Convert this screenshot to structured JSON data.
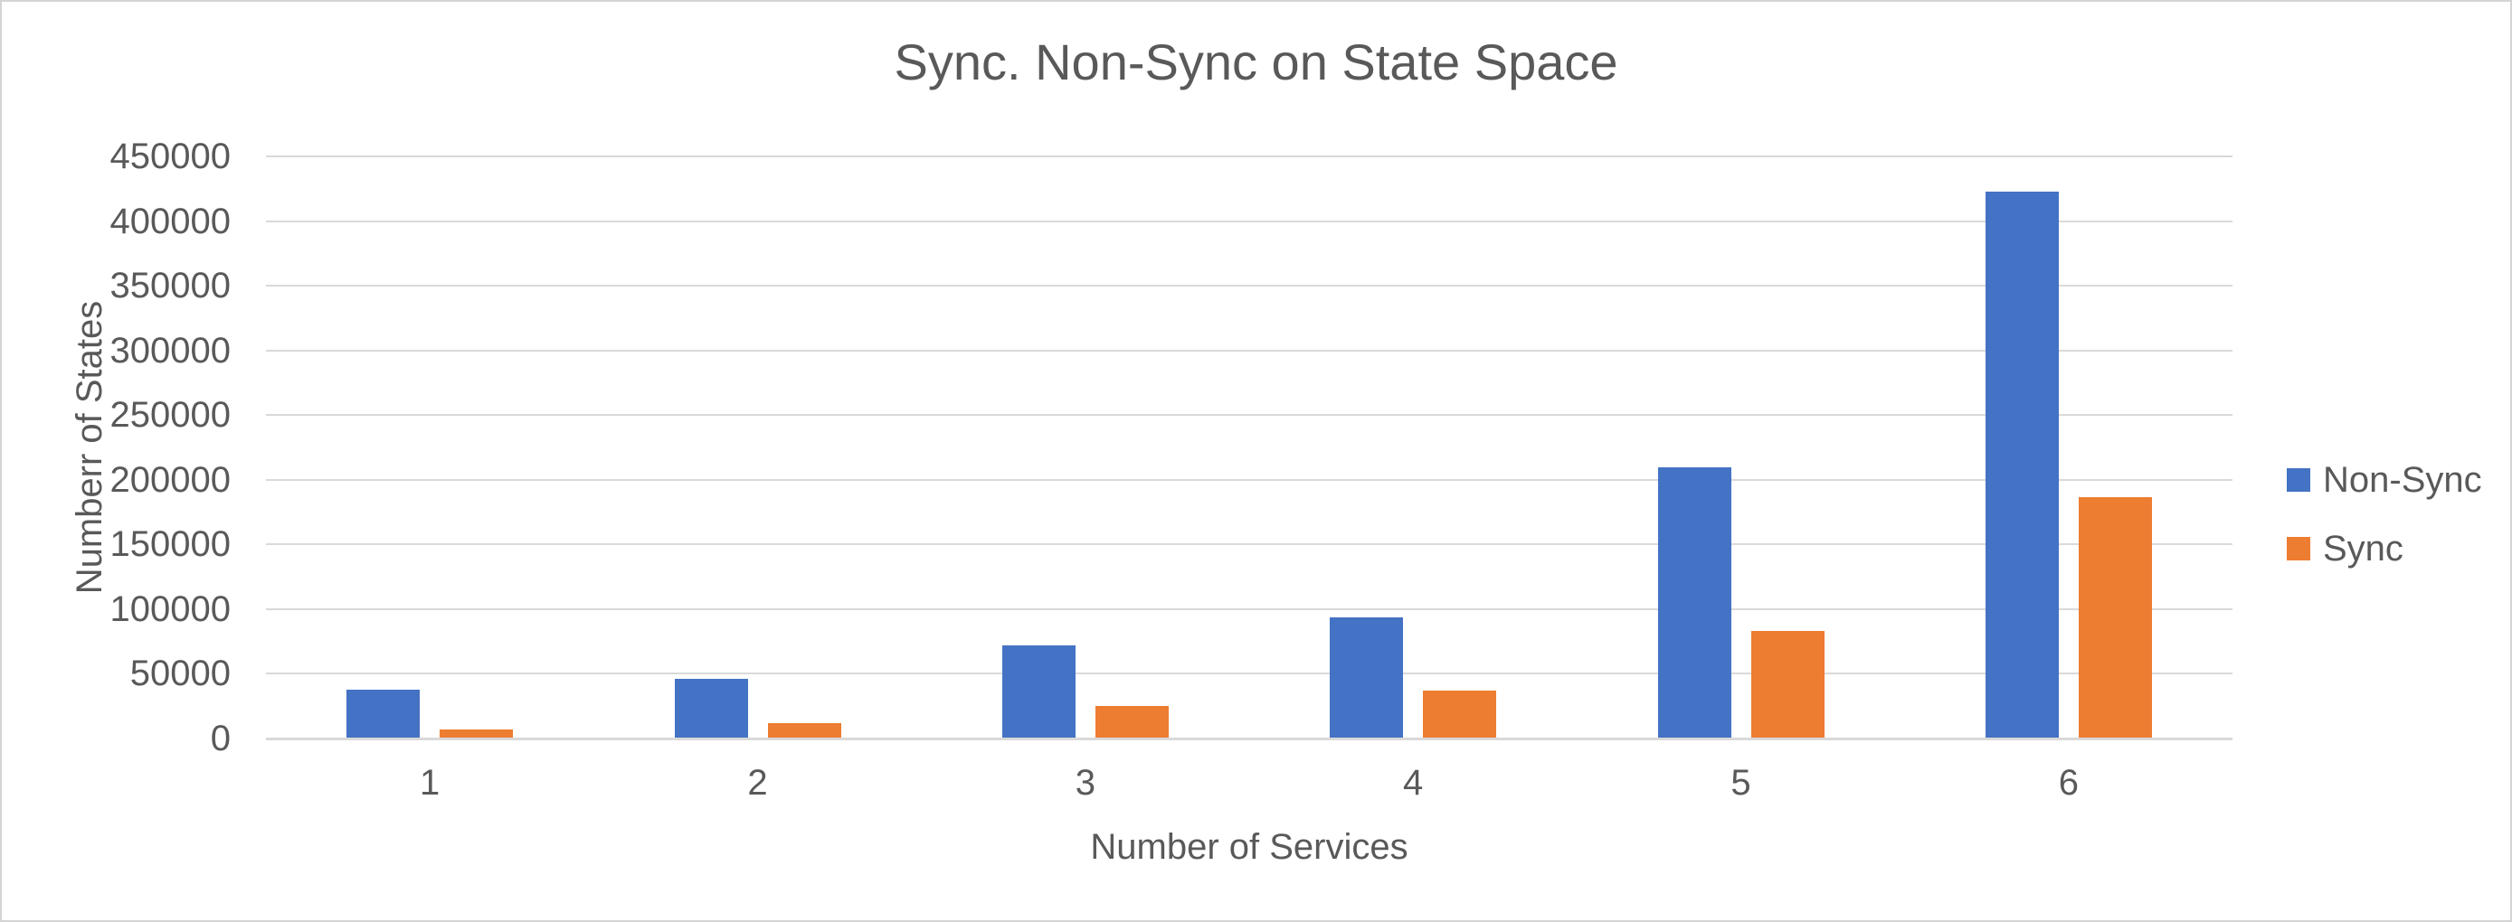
{
  "chart_data": {
    "type": "bar",
    "title": "Sync. Non-Sync on State Space",
    "categories": [
      "1",
      "2",
      "3",
      "4",
      "5",
      "6"
    ],
    "series": [
      {
        "name": "Non-Sync",
        "color": "#4472C4",
        "values": [
          37500,
          46000,
          72000,
          93500,
          209500,
          423000
        ]
      },
      {
        "name": "Sync",
        "color": "#ED7D31",
        "values": [
          7000,
          12000,
          25000,
          36800,
          83000,
          186500
        ]
      }
    ],
    "xlabel": "Number of Services",
    "ylabel": "Numberr of States",
    "ylim": [
      0,
      450000
    ],
    "ytick_step": 50000,
    "ytick_labels": [
      "0",
      "50000",
      "100000",
      "150000",
      "200000",
      "250000",
      "300000",
      "350000",
      "400000",
      "450000"
    ],
    "grid": true,
    "legend_position": "right"
  },
  "colors": {
    "text": "#595959",
    "gridline": "#D9D9D9",
    "axis_line": "#D9D9D9",
    "canvas_border": "#D4D4D4",
    "background": "#FFFFFF",
    "non_sync_bar": "#4472C4",
    "sync_bar": "#ED7D31"
  }
}
